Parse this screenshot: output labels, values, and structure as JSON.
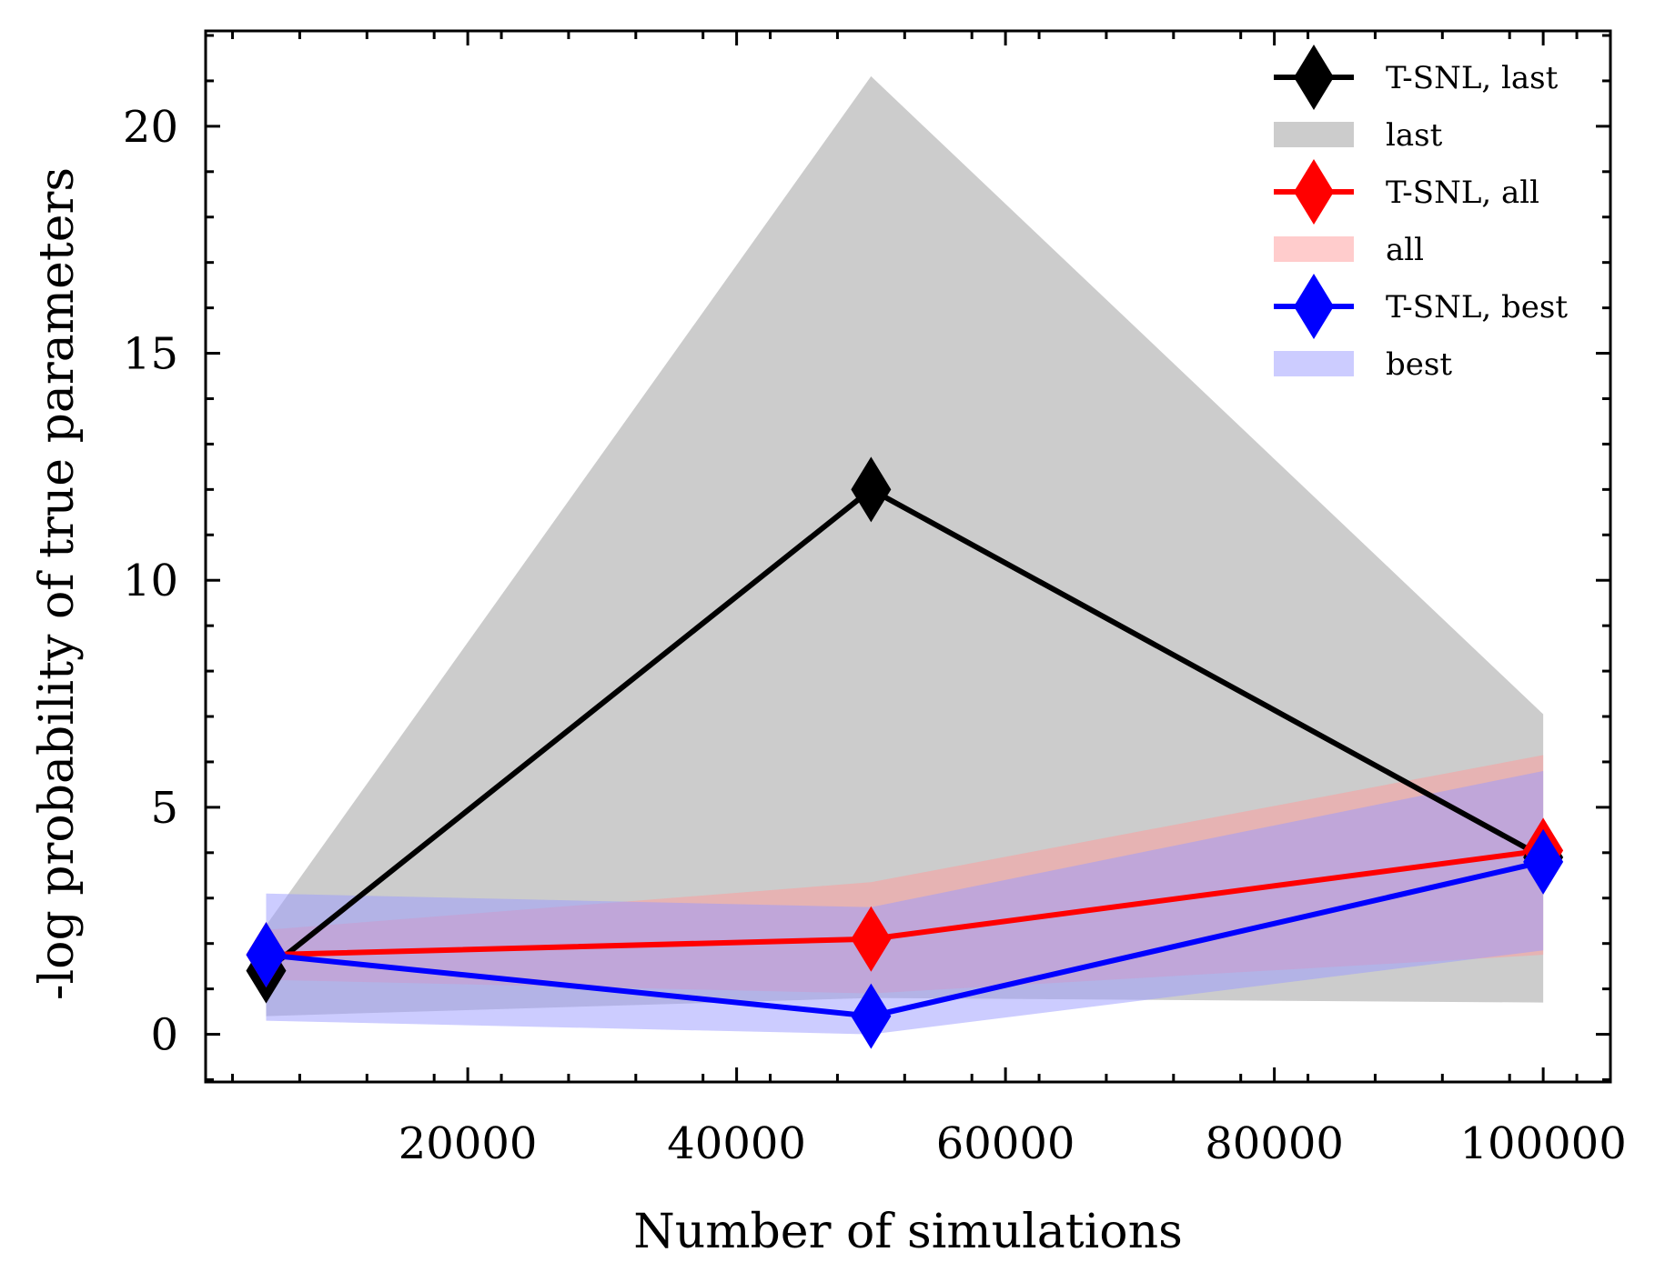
{
  "chart_data": {
    "type": "line",
    "xlabel": "Number of simulations",
    "ylabel": "-log probability of true parameters",
    "xlim": [
      500,
      105000
    ],
    "ylim": [
      -1.05,
      22.1
    ],
    "x_ticks": [
      20000,
      40000,
      60000,
      80000,
      100000
    ],
    "x_tick_labels": [
      "20000",
      "40000",
      "60000",
      "80000",
      "100000"
    ],
    "y_ticks": [
      0,
      5,
      10,
      15,
      20
    ],
    "y_tick_labels": [
      "0",
      "5",
      "10",
      "15",
      "20"
    ],
    "legend_position": "top-right",
    "grid": false,
    "x": [
      5000,
      50000,
      100000
    ],
    "series": [
      {
        "name": "T-SNL, last",
        "color": "#000000",
        "marker": "diamond",
        "values": [
          1.4,
          12.0,
          3.9
        ]
      },
      {
        "name": "T-SNL, all",
        "color": "#ff0000",
        "marker": "diamond",
        "values": [
          1.75,
          2.1,
          4.05
        ]
      },
      {
        "name": "T-SNL, best",
        "color": "#0000ff",
        "marker": "diamond",
        "values": [
          1.75,
          0.4,
          3.8
        ]
      }
    ],
    "bands": [
      {
        "name": "last",
        "color": "#9a9a9a",
        "opacity": 0.5,
        "lower": [
          0.4,
          0.8,
          0.7
        ],
        "upper": [
          2.4,
          21.1,
          7.05
        ]
      },
      {
        "name": "all",
        "color": "#ff9a9a",
        "opacity": 0.5,
        "lower": [
          1.2,
          0.9,
          1.75
        ],
        "upper": [
          2.3,
          3.35,
          6.15
        ]
      },
      {
        "name": "best",
        "color": "#9a9aff",
        "opacity": 0.5,
        "lower": [
          0.3,
          0.0,
          1.85
        ],
        "upper": [
          3.1,
          2.8,
          5.8
        ]
      }
    ],
    "legend_order": [
      "T-SNL, last",
      "last",
      "T-SNL, all",
      "all",
      "T-SNL, best",
      "best"
    ]
  }
}
